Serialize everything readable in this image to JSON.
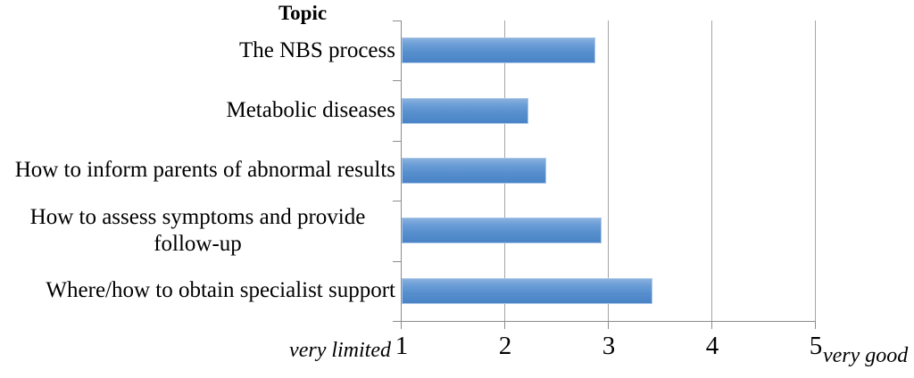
{
  "chart_data": {
    "type": "bar",
    "orientation": "horizontal",
    "title": "Topic",
    "categories": [
      "The NBS process",
      "Metabolic diseases",
      "How to inform parents of abnormal results",
      "How to assess symptoms and provide follow-up",
      "Where/how to obtain specialist support"
    ],
    "values": [
      2.87,
      2.22,
      2.4,
      2.93,
      3.42
    ],
    "xlim": [
      1,
      5
    ],
    "x_ticks": [
      "1",
      "2",
      "3",
      "4",
      "5"
    ],
    "x_min_label": "very limited",
    "x_max_label": "very good",
    "xlabel": "",
    "ylabel": "Topic",
    "grid": "vertical-gridlines-on",
    "legend": "none",
    "colors": {
      "bar_top": "#8AB0DD",
      "bar_bottom": "#4A83C6",
      "bar_border": "#A9C7E8",
      "gridline": "#A6A6A6",
      "axis": "#8C8C8C",
      "text": "#000000"
    }
  }
}
